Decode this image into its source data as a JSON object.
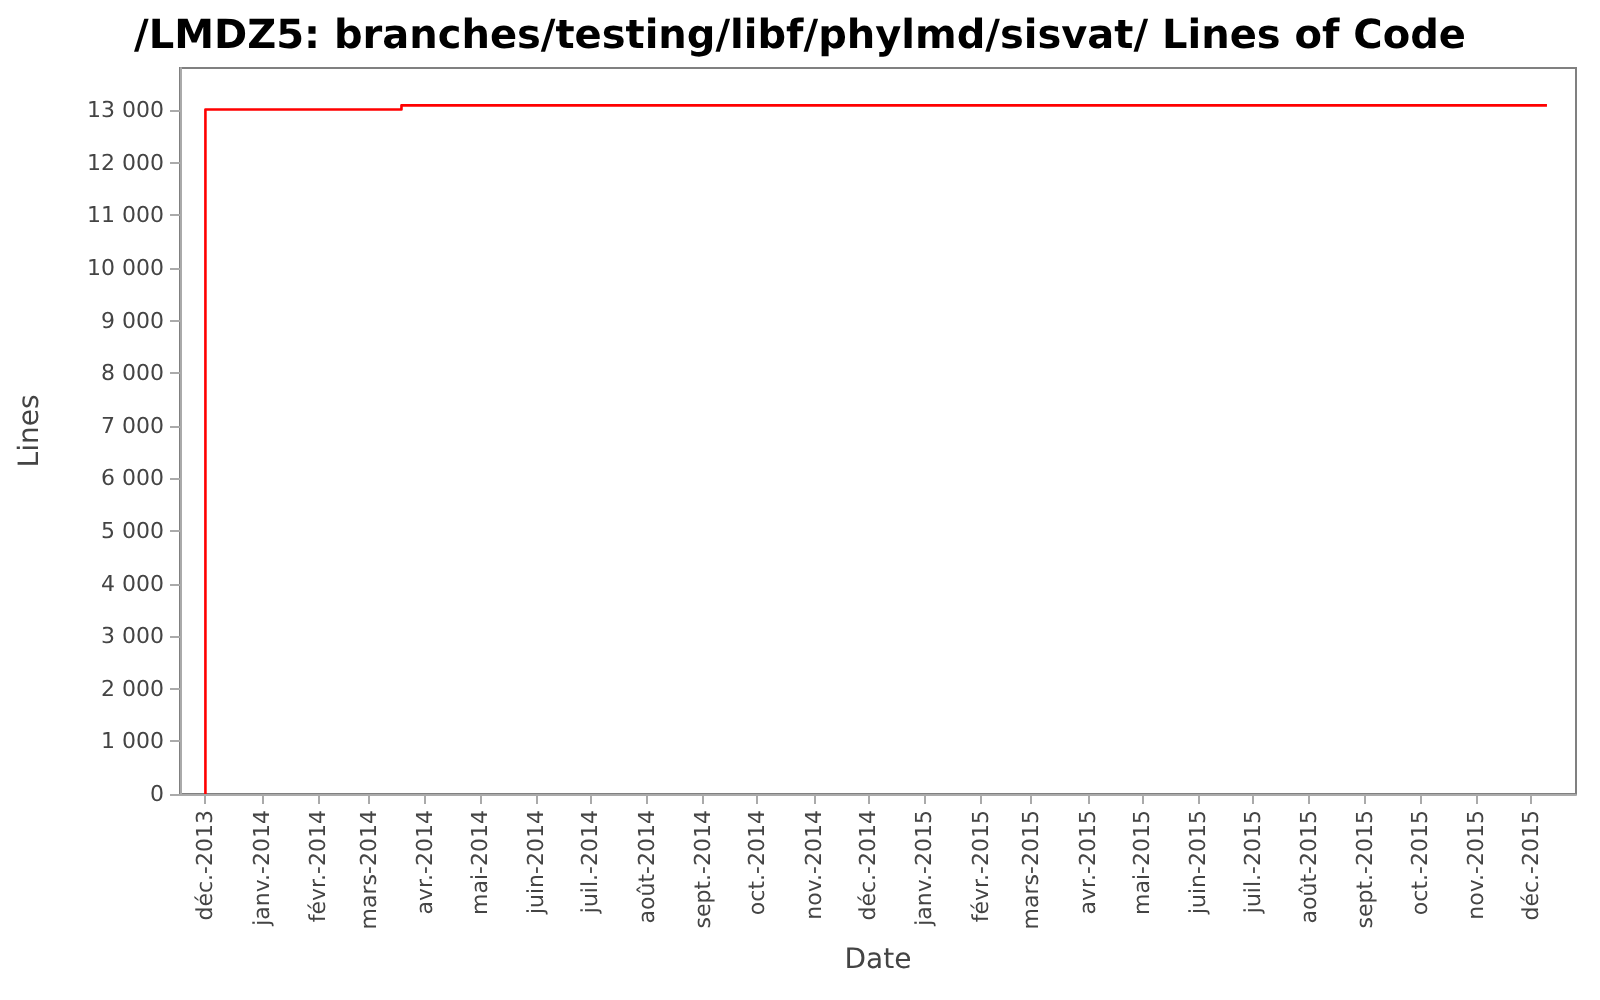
{
  "chart_data": {
    "type": "step",
    "title": "/LMDZ5: branches/testing/libf/phylmd/sisvat/ Lines of Code",
    "xlabel": "Date",
    "ylabel": "Lines",
    "x": [
      "2013-12-01",
      "2013-12-01",
      "2014-03-19",
      "2015-12-10"
    ],
    "series": [
      {
        "color": "#ff0000",
        "values": [
          0,
          13010,
          13090,
          13090
        ]
      }
    ],
    "xlim": [
      "2013-11-17",
      "2015-12-26"
    ],
    "xticks": [
      {
        "value": "2013-12-01",
        "label": "déc.-2013"
      },
      {
        "value": "2014-01-01",
        "label": "janv.-2014"
      },
      {
        "value": "2014-02-01",
        "label": "févr.-2014"
      },
      {
        "value": "2014-03-01",
        "label": "mars-2014"
      },
      {
        "value": "2014-04-01",
        "label": "avr.-2014"
      },
      {
        "value": "2014-05-01",
        "label": "mai-2014"
      },
      {
        "value": "2014-06-01",
        "label": "juin-2014"
      },
      {
        "value": "2014-07-01",
        "label": "juil.-2014"
      },
      {
        "value": "2014-08-01",
        "label": "août-2014"
      },
      {
        "value": "2014-09-01",
        "label": "sept.-2014"
      },
      {
        "value": "2014-10-01",
        "label": "oct.-2014"
      },
      {
        "value": "2014-11-01",
        "label": "nov.-2014"
      },
      {
        "value": "2014-12-01",
        "label": "déc.-2014"
      },
      {
        "value": "2015-01-01",
        "label": "janv.-2015"
      },
      {
        "value": "2015-02-01",
        "label": "févr.-2015"
      },
      {
        "value": "2015-03-01",
        "label": "mars-2015"
      },
      {
        "value": "2015-04-01",
        "label": "avr.-2015"
      },
      {
        "value": "2015-05-01",
        "label": "mai-2015"
      },
      {
        "value": "2015-06-01",
        "label": "juin-2015"
      },
      {
        "value": "2015-07-01",
        "label": "juil.-2015"
      },
      {
        "value": "2015-08-01",
        "label": "août-2015"
      },
      {
        "value": "2015-09-01",
        "label": "sept.-2015"
      },
      {
        "value": "2015-10-01",
        "label": "oct.-2015"
      },
      {
        "value": "2015-11-01",
        "label": "nov.-2015"
      },
      {
        "value": "2015-12-01",
        "label": "déc.-2015"
      }
    ],
    "ylim": [
      0,
      13800
    ],
    "yticks": [
      0,
      {
        "value": 1000,
        "label": "1 000"
      },
      {
        "value": 2000,
        "label": "2 000"
      },
      {
        "value": 3000,
        "label": "3 000"
      },
      {
        "value": 4000,
        "label": "4 000"
      },
      {
        "value": 5000,
        "label": "5 000"
      },
      {
        "value": 6000,
        "label": "6 000"
      },
      {
        "value": 7000,
        "label": "7 000"
      },
      {
        "value": 8000,
        "label": "8 000"
      },
      {
        "value": 9000,
        "label": "9 000"
      },
      {
        "value": 10000,
        "label": "10 000"
      },
      {
        "value": 11000,
        "label": "11 000"
      },
      {
        "value": 12000,
        "label": "12 000"
      },
      {
        "value": 13000,
        "label": "13 000"
      }
    ],
    "grid": false,
    "marker": "none",
    "line_style": "solid"
  }
}
